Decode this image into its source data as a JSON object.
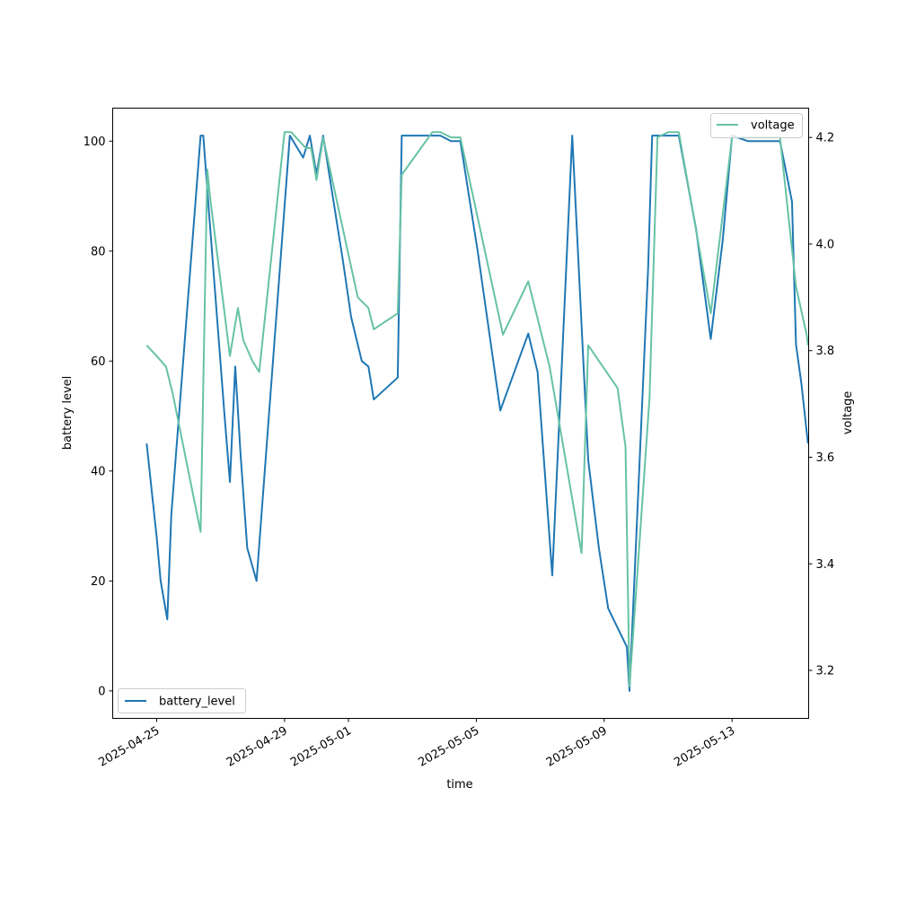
{
  "chart_data": {
    "type": "line",
    "title": "",
    "xlabel": "time",
    "ylabel_left": "battery level",
    "ylabel_right": "voltage",
    "x_ticks": [
      "2025-04-25",
      "2025-04-29",
      "2025-05-01",
      "2025-05-05",
      "2025-05-09",
      "2025-05-13"
    ],
    "xlim": [
      "2025-04-23 15:00",
      "2025-05-15 09:30"
    ],
    "ylim_left": [
      -5,
      106
    ],
    "ylim_right": [
      3.11,
      4.255
    ],
    "y_ticks_left": [
      0,
      20,
      40,
      60,
      80,
      100
    ],
    "y_ticks_right": [
      3.2,
      3.4,
      3.6,
      3.8,
      4.0,
      4.2
    ],
    "grid": false,
    "legends": [
      {
        "series": "battery_level",
        "placement": "lower left"
      },
      {
        "series": "voltage",
        "placement": "upper right"
      }
    ],
    "series": [
      {
        "name": "battery_level",
        "axis": "left",
        "color": "#1f77b4",
        "points": [
          [
            "2025-04-24 16:30",
            45
          ],
          [
            "2025-04-25 00:00",
            28
          ],
          [
            "2025-04-25 03:00",
            20
          ],
          [
            "2025-04-25 08:00",
            13
          ],
          [
            "2025-04-25 11:00",
            32
          ],
          [
            "2025-04-26 09:00",
            101
          ],
          [
            "2025-04-26 11:00",
            101
          ],
          [
            "2025-04-26 15:00",
            88
          ],
          [
            "2025-04-27 03:00",
            50
          ],
          [
            "2025-04-27 07:00",
            38
          ],
          [
            "2025-04-27 11:00",
            59
          ],
          [
            "2025-04-27 15:00",
            43
          ],
          [
            "2025-04-27 20:00",
            26
          ],
          [
            "2025-04-28 03:00",
            20
          ],
          [
            "2025-04-29 04:00",
            101
          ],
          [
            "2025-04-29 14:00",
            97
          ],
          [
            "2025-04-29 19:00",
            101
          ],
          [
            "2025-04-30 00:00",
            94
          ],
          [
            "2025-04-30 05:00",
            101
          ],
          [
            "2025-04-30 20:00",
            78
          ],
          [
            "2025-05-01 02:00",
            68
          ],
          [
            "2025-05-01 10:00",
            60
          ],
          [
            "2025-05-01 15:00",
            59
          ],
          [
            "2025-05-01 19:00",
            53
          ],
          [
            "2025-05-02 13:00",
            57
          ],
          [
            "2025-05-02 16:00",
            101
          ],
          [
            "2025-05-03 15:00",
            101
          ],
          [
            "2025-05-03 21:00",
            101
          ],
          [
            "2025-05-04 05:00",
            100
          ],
          [
            "2025-05-04 12:00",
            100
          ],
          [
            "2025-05-05 01:00",
            80
          ],
          [
            "2025-05-05 18:00",
            51
          ],
          [
            "2025-05-06 15:00",
            65
          ],
          [
            "2025-05-06 22:00",
            58
          ],
          [
            "2025-05-07 09:00",
            21
          ],
          [
            "2025-05-08 00:00",
            101
          ],
          [
            "2025-05-08 12:00",
            42
          ],
          [
            "2025-05-08 20:00",
            26
          ],
          [
            "2025-05-09 03:00",
            15
          ],
          [
            "2025-05-09 17:00",
            8
          ],
          [
            "2025-05-09 19:00",
            0
          ],
          [
            "2025-05-10 09:00",
            77
          ],
          [
            "2025-05-10 12:00",
            101
          ],
          [
            "2025-05-11 08:00",
            101
          ],
          [
            "2025-05-11 21:00",
            84
          ],
          [
            "2025-05-12 08:00",
            64
          ],
          [
            "2025-05-12 17:00",
            82
          ],
          [
            "2025-05-13 00:00",
            101
          ],
          [
            "2025-05-13 12:00",
            100
          ],
          [
            "2025-05-14 02:00",
            100
          ],
          [
            "2025-05-14 12:00",
            100
          ],
          [
            "2025-05-14 21:00",
            89
          ],
          [
            "2025-05-15 00:00",
            63
          ],
          [
            "2025-05-15 04:00",
            56
          ],
          [
            "2025-05-15 09:00",
            45
          ]
        ]
      },
      {
        "name": "voltage",
        "axis": "right",
        "color": "#66c2a5",
        "points": [
          [
            "2025-04-24 16:30",
            3.81
          ],
          [
            "2025-04-25 00:00",
            3.79
          ],
          [
            "2025-04-25 07:00",
            3.77
          ],
          [
            "2025-04-25 12:00",
            3.72
          ],
          [
            "2025-04-26 09:00",
            3.46
          ],
          [
            "2025-04-26 12:00",
            3.87
          ],
          [
            "2025-04-26 14:00",
            4.14
          ],
          [
            "2025-04-26 16:00",
            4.09
          ],
          [
            "2025-04-27 07:00",
            3.79
          ],
          [
            "2025-04-27 13:00",
            3.88
          ],
          [
            "2025-04-27 17:00",
            3.82
          ],
          [
            "2025-04-28 00:00",
            3.78
          ],
          [
            "2025-04-28 05:00",
            3.76
          ],
          [
            "2025-04-29 00:00",
            4.21
          ],
          [
            "2025-04-29 05:00",
            4.21
          ],
          [
            "2025-04-29 16:00",
            4.18
          ],
          [
            "2025-04-29 20:00",
            4.18
          ],
          [
            "2025-04-30 00:00",
            4.12
          ],
          [
            "2025-04-30 05:00",
            4.2
          ],
          [
            "2025-05-01 00:00",
            3.98
          ],
          [
            "2025-05-01 07:00",
            3.9
          ],
          [
            "2025-05-01 15:00",
            3.88
          ],
          [
            "2025-05-01 19:00",
            3.84
          ],
          [
            "2025-05-02 13:00",
            3.87
          ],
          [
            "2025-05-02 16:00",
            4.13
          ],
          [
            "2025-05-03 15:00",
            4.21
          ],
          [
            "2025-05-03 21:00",
            4.21
          ],
          [
            "2025-05-04 05:00",
            4.2
          ],
          [
            "2025-05-04 12:00",
            4.2
          ],
          [
            "2025-05-05 20:00",
            3.83
          ],
          [
            "2025-05-06 15:00",
            3.93
          ],
          [
            "2025-05-07 07:00",
            3.77
          ],
          [
            "2025-05-08 07:00",
            3.42
          ],
          [
            "2025-05-08 12:00",
            3.81
          ],
          [
            "2025-05-09 10:00",
            3.73
          ],
          [
            "2025-05-09 16:00",
            3.62
          ],
          [
            "2025-05-09 19:00",
            3.17
          ],
          [
            "2025-05-10 10:00",
            3.71
          ],
          [
            "2025-05-10 16:00",
            4.2
          ],
          [
            "2025-05-11 00:00",
            4.21
          ],
          [
            "2025-05-11 08:00",
            4.21
          ],
          [
            "2025-05-12 08:00",
            3.87
          ],
          [
            "2025-05-13 00:00",
            4.2
          ],
          [
            "2025-05-13 12:00",
            4.2
          ],
          [
            "2025-05-14 02:00",
            4.2
          ],
          [
            "2025-05-14 12:00",
            4.2
          ],
          [
            "2025-05-15 00:00",
            3.92
          ],
          [
            "2025-05-15 08:00",
            3.83
          ],
          [
            "2025-05-15 09:00",
            3.81
          ]
        ]
      }
    ]
  }
}
